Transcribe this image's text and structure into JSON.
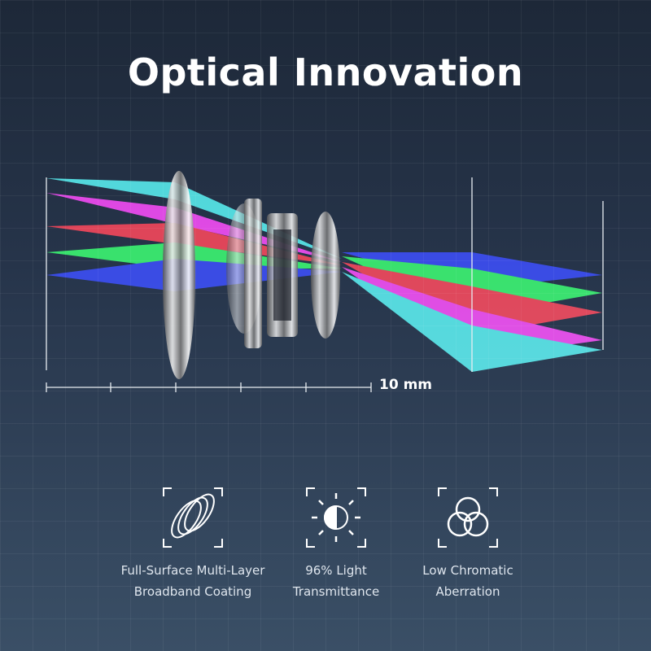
{
  "title": "Optical Innovation",
  "scale_label": "10 mm",
  "ray_colors": {
    "cyan": "#3ff2f2",
    "magenta": "#ff22ff",
    "red": "#ff1a1a",
    "green": "#19ff3a",
    "blue": "#1a22ff"
  },
  "features": [
    {
      "icon": "multi-layer-coating-icon",
      "line1": "Full-Surface Multi-Layer",
      "line2": "Broadband Coating"
    },
    {
      "icon": "light-transmittance-icon",
      "line1": "96% Light",
      "line2": "Transmittance"
    },
    {
      "icon": "chromatic-aberration-icon",
      "line1": "Low Chromatic",
      "line2": "Aberration"
    }
  ]
}
